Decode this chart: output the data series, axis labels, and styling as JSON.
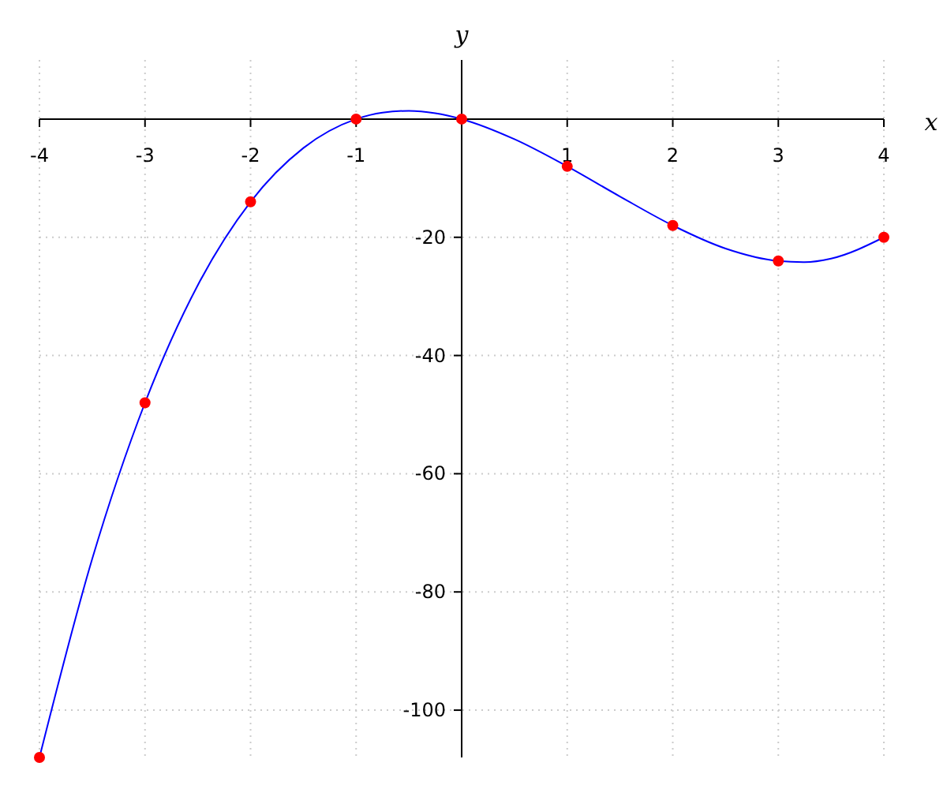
{
  "chart_data": {
    "type": "line",
    "xlabel": "x",
    "ylabel": "y",
    "xlim": [
      -4,
      4
    ],
    "ylim": [
      -108,
      10
    ],
    "xticks": [
      -4,
      -3,
      -2,
      -1,
      1,
      2,
      3,
      4
    ],
    "yticks": [
      -100,
      -80,
      -60,
      -40,
      -20
    ],
    "grid": true,
    "series": [
      {
        "color": "#0000ff",
        "marker": "none",
        "x": [
          -4,
          -3.5,
          -3,
          -2.5,
          -2,
          -1.5,
          -1,
          -0.75,
          -0.5,
          -0.25,
          0,
          0.5,
          1,
          1.5,
          2,
          2.5,
          3,
          3.25,
          3.5,
          4
        ],
        "values": [
          -108,
          -74.4,
          -48,
          -28.1,
          -14,
          -4.9,
          0,
          1.1,
          1.4,
          1,
          0,
          -3.4,
          -8,
          -13.1,
          -18,
          -21.9,
          -24,
          -24.2,
          -23.6,
          -20
        ]
      },
      {
        "type": "scatter",
        "color": "#ff0000",
        "marker": "circle",
        "x": [
          -4,
          -3,
          -2,
          -1,
          0,
          1,
          2,
          3,
          4
        ],
        "values": [
          -108,
          -48,
          -14,
          0,
          0,
          -8,
          -18,
          -24,
          -20
        ]
      }
    ]
  }
}
